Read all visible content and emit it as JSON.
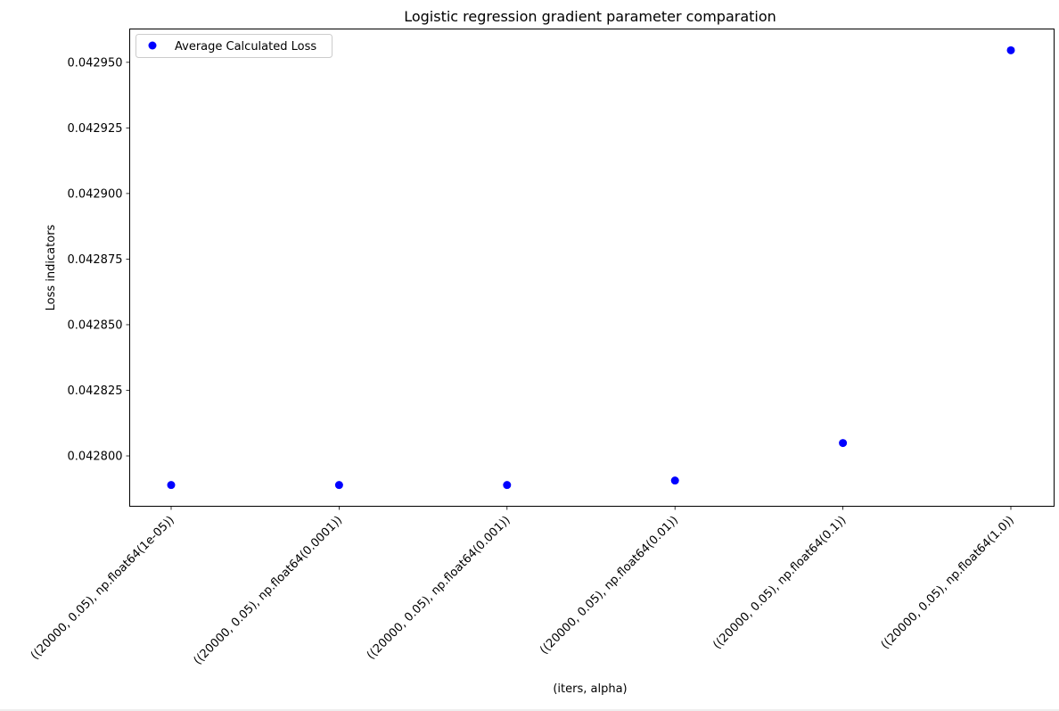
{
  "chart_data": {
    "type": "scatter",
    "title": "Logistic regression gradient parameter comparation",
    "xlabel": "(iters, alpha)",
    "ylabel": "Loss indicators",
    "categories": [
      "((20000, 0.05), np.float64(1e-05))",
      "((20000, 0.05), np.float64(0.0001))",
      "((20000, 0.05), np.float64(0.001))",
      "((20000, 0.05), np.float64(0.01))",
      "((20000, 0.05), np.float64(0.1))",
      "((20000, 0.05), np.float64(1.0))"
    ],
    "series": [
      {
        "name": "Average Calculated Loss",
        "color": "#0000ff",
        "marker": "circle",
        "values": [
          0.0427889,
          0.0427889,
          0.0427889,
          0.0427906,
          0.0428049,
          0.0429546
        ]
      }
    ],
    "yticks": [
      0.0428,
      0.042825,
      0.04285,
      0.042875,
      0.0429,
      0.042925,
      0.04295
    ],
    "ytick_labels": [
      "0.042800",
      "0.042825",
      "0.042850",
      "0.042875",
      "0.042900",
      "0.042925",
      "0.042950"
    ],
    "ylim": [
      0.0427808,
      0.0429627
    ],
    "grid": false,
    "legend_position": "top-left"
  }
}
